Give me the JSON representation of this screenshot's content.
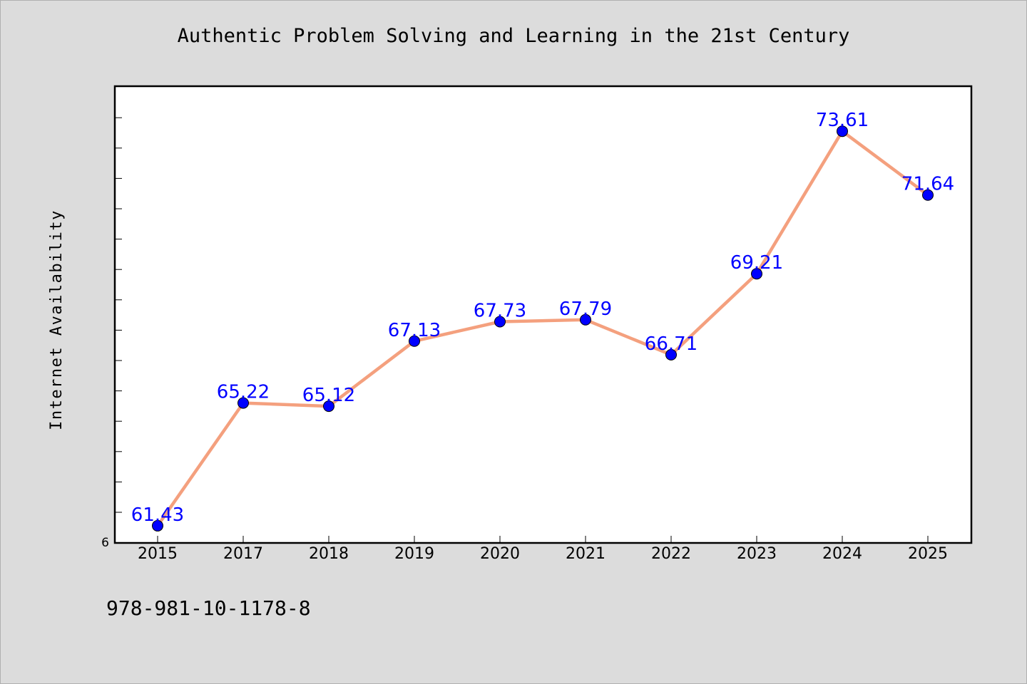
{
  "title": "Authentic Problem Solving and Learning in the 21st Century",
  "isbn": "978-981-10-1178-8",
  "chart_data": {
    "type": "line",
    "title": "Authentic Problem Solving and Learning in the 21st Century",
    "xlabel": "",
    "ylabel": "Internet Availability",
    "categories": [
      "2015",
      "2017",
      "2018",
      "2019",
      "2020",
      "2021",
      "2022",
      "2023",
      "2024",
      "2025"
    ],
    "values": [
      61.43,
      65.22,
      65.12,
      67.13,
      67.73,
      67.79,
      66.71,
      69.21,
      73.61,
      71.64
    ],
    "data_labels": [
      "61.43",
      "65.22",
      "65.12",
      "67.13",
      "67.73",
      "67.79",
      "66.71",
      "69.21",
      "73.61",
      "71.64"
    ],
    "ytick_labels": [
      "6"
    ],
    "ylim": [
      60.9,
      75.0
    ],
    "grid": false,
    "colors": {
      "line": "#f4a07e",
      "marker": "#0000ff",
      "label": "#0000ff"
    }
  }
}
